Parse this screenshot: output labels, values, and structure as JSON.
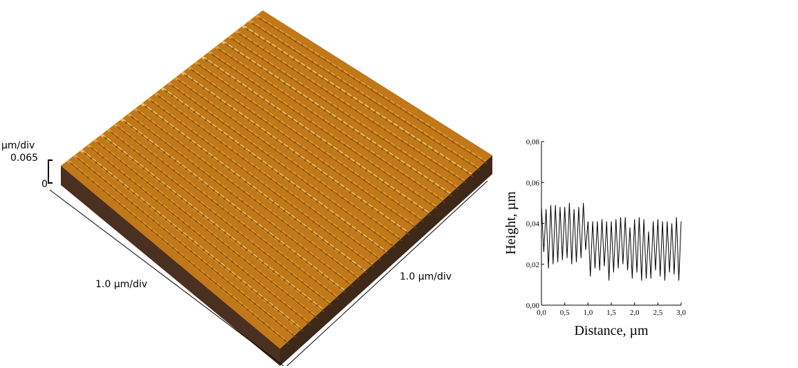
{
  "afm_image": {
    "z_unit": "µm/div",
    "z_max": "0.065",
    "z_min": "0",
    "x_scale": "1.0 µm/div",
    "y_scale": "1.0 µm/div"
  },
  "chart_data": {
    "type": "line",
    "x_label": "Distance, µm",
    "y_label": "Height, µm",
    "color": "#000000",
    "x": [
      0,
      0.05,
      0.1,
      0.15,
      0.2,
      0.25,
      0.3,
      0.35,
      0.4,
      0.45,
      0.5,
      0.55,
      0.6,
      0.65,
      0.7,
      0.75,
      0.8,
      0.85,
      0.9,
      0.95,
      1.0,
      1.05,
      1.1,
      1.15,
      1.2,
      1.25,
      1.3,
      1.35,
      1.4,
      1.45,
      1.5,
      1.55,
      1.6,
      1.65,
      1.7,
      1.75,
      1.8,
      1.85,
      1.9,
      1.95,
      2.0,
      2.05,
      2.1,
      2.15,
      2.2,
      2.25,
      2.3,
      2.35,
      2.4,
      2.45,
      2.5,
      2.55,
      2.6,
      2.65,
      2.7,
      2.75,
      2.8,
      2.85,
      2.9,
      2.95,
      3.0
    ],
    "values": [
      0.048,
      0.026,
      0.047,
      0.018,
      0.049,
      0.02,
      0.049,
      0.021,
      0.048,
      0.022,
      0.048,
      0.023,
      0.05,
      0.02,
      0.047,
      0.021,
      0.048,
      0.023,
      0.05,
      0.027,
      0.041,
      0.014,
      0.041,
      0.018,
      0.041,
      0.017,
      0.042,
      0.019,
      0.041,
      0.012,
      0.041,
      0.016,
      0.042,
      0.018,
      0.043,
      0.02,
      0.043,
      0.017,
      0.038,
      0.013,
      0.042,
      0.016,
      0.043,
      0.012,
      0.042,
      0.013,
      0.036,
      0.013,
      0.041,
      0.017,
      0.042,
      0.014,
      0.041,
      0.012,
      0.041,
      0.016,
      0.04,
      0.015,
      0.043,
      0.012,
      0.041
    ],
    "xlim": [
      0,
      3
    ],
    "ylim": [
      0,
      0.08
    ],
    "xticks": [
      {
        "value": 0,
        "label": "0,0"
      },
      {
        "value": 0.5,
        "label": "0,5"
      },
      {
        "value": 1,
        "label": "1,0"
      },
      {
        "value": 1.5,
        "label": "1,5"
      },
      {
        "value": 2,
        "label": "2,0"
      },
      {
        "value": 2.5,
        "label": "2,5"
      },
      {
        "value": 3,
        "label": "3,0"
      }
    ],
    "yticks": [
      {
        "value": 0,
        "label": "0,00"
      },
      {
        "value": 0.02,
        "label": "0,02"
      },
      {
        "value": 0.04,
        "label": "0,04"
      },
      {
        "value": 0.06,
        "label": "0,06"
      },
      {
        "value": 0.08,
        "label": "0,08"
      }
    ]
  }
}
